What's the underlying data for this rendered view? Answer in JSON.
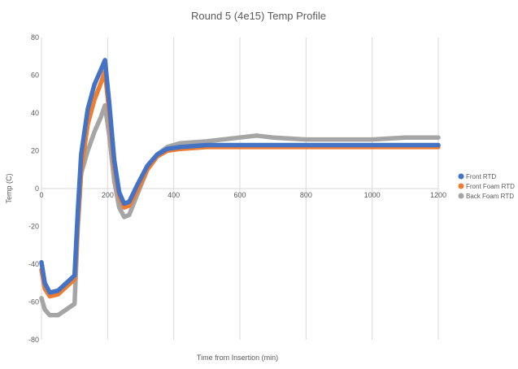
{
  "chart_data": {
    "type": "line",
    "title": "Round 5 (4e15) Temp Profile",
    "xlabel": "Time from Insertion (min)",
    "ylabel": "Temp (C)",
    "xlim": [
      0,
      1200
    ],
    "ylim": [
      -80,
      80
    ],
    "x_ticks": [
      0,
      200,
      400,
      600,
      800,
      1000,
      1200
    ],
    "y_ticks": [
      -80,
      -60,
      -40,
      -20,
      0,
      20,
      40,
      60,
      80
    ],
    "grid": "vertical",
    "legend_position": "right",
    "series": [
      {
        "name": "Back Foam RTD",
        "color": "#A5A5A5",
        "points": [
          [
            0,
            -58
          ],
          [
            10,
            -64
          ],
          [
            25,
            -67
          ],
          [
            50,
            -67
          ],
          [
            75,
            -64
          ],
          [
            100,
            -61
          ],
          [
            110,
            -20
          ],
          [
            120,
            8
          ],
          [
            140,
            20
          ],
          [
            160,
            30
          ],
          [
            180,
            38
          ],
          [
            192,
            44
          ],
          [
            205,
            28
          ],
          [
            220,
            4
          ],
          [
            235,
            -10
          ],
          [
            250,
            -15
          ],
          [
            265,
            -14
          ],
          [
            290,
            -3
          ],
          [
            320,
            10
          ],
          [
            350,
            18
          ],
          [
            380,
            22
          ],
          [
            420,
            24
          ],
          [
            500,
            25
          ],
          [
            600,
            27
          ],
          [
            650,
            28
          ],
          [
            700,
            27
          ],
          [
            800,
            26
          ],
          [
            900,
            26
          ],
          [
            1000,
            26
          ],
          [
            1100,
            27
          ],
          [
            1200,
            27
          ]
        ]
      },
      {
        "name": "Front Foam RTD",
        "color": "#ED7D31",
        "points": [
          [
            0,
            -43
          ],
          [
            10,
            -53
          ],
          [
            25,
            -57
          ],
          [
            50,
            -56
          ],
          [
            75,
            -52
          ],
          [
            100,
            -48
          ],
          [
            110,
            -18
          ],
          [
            120,
            10
          ],
          [
            140,
            34
          ],
          [
            160,
            47
          ],
          [
            180,
            56
          ],
          [
            192,
            62
          ],
          [
            205,
            40
          ],
          [
            220,
            12
          ],
          [
            235,
            -4
          ],
          [
            250,
            -10
          ],
          [
            265,
            -9
          ],
          [
            290,
            -1
          ],
          [
            320,
            10
          ],
          [
            350,
            17
          ],
          [
            380,
            20
          ],
          [
            420,
            21
          ],
          [
            500,
            22
          ],
          [
            600,
            22
          ],
          [
            700,
            22
          ],
          [
            800,
            22
          ],
          [
            900,
            22
          ],
          [
            1000,
            22
          ],
          [
            1100,
            22
          ],
          [
            1200,
            22
          ]
        ]
      },
      {
        "name": "Front RTD",
        "color": "#4472C4",
        "points": [
          [
            0,
            -39
          ],
          [
            10,
            -50
          ],
          [
            25,
            -55
          ],
          [
            50,
            -54
          ],
          [
            75,
            -50
          ],
          [
            100,
            -46
          ],
          [
            110,
            -12
          ],
          [
            120,
            18
          ],
          [
            140,
            42
          ],
          [
            160,
            55
          ],
          [
            180,
            63
          ],
          [
            192,
            68
          ],
          [
            205,
            45
          ],
          [
            220,
            15
          ],
          [
            235,
            -2
          ],
          [
            250,
            -8
          ],
          [
            265,
            -7
          ],
          [
            290,
            2
          ],
          [
            320,
            12
          ],
          [
            350,
            18
          ],
          [
            380,
            21
          ],
          [
            420,
            22
          ],
          [
            500,
            23
          ],
          [
            600,
            23
          ],
          [
            700,
            23
          ],
          [
            800,
            23
          ],
          [
            900,
            23
          ],
          [
            1000,
            23
          ],
          [
            1100,
            23
          ],
          [
            1200,
            23
          ]
        ]
      }
    ]
  }
}
